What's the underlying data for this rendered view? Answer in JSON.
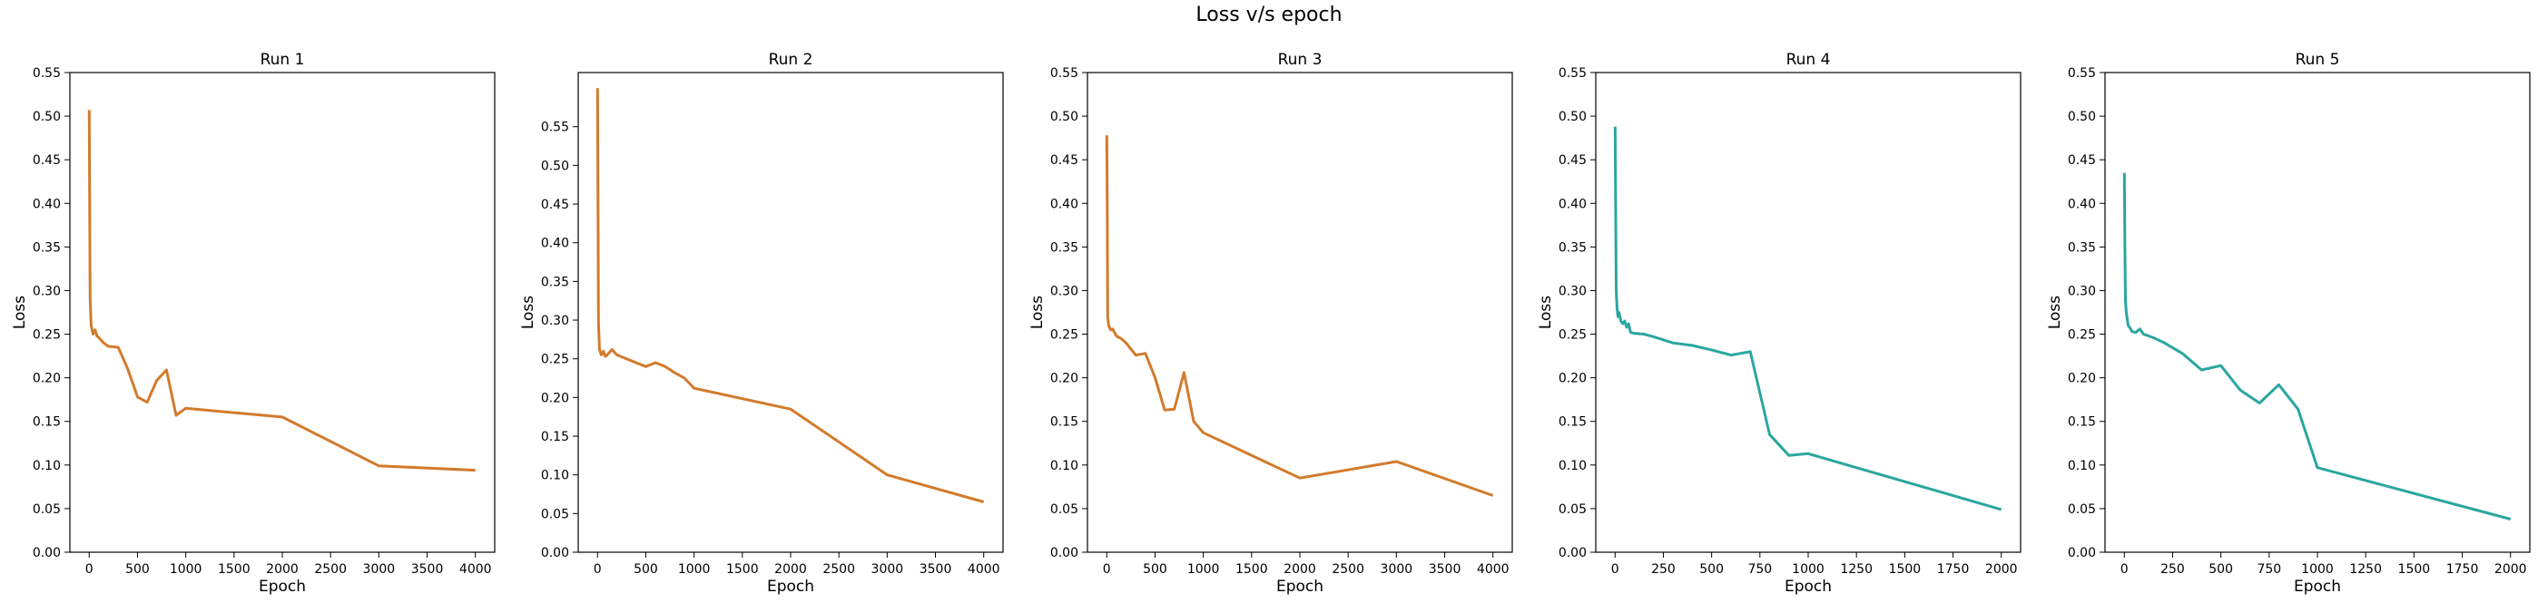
{
  "figure": {
    "suptitle": "Loss v/s epoch"
  },
  "chart_data": [
    {
      "type": "line",
      "title": "Run 1",
      "xlabel": "Epoch",
      "ylabel": "Loss",
      "xlim": [
        -200,
        4200
      ],
      "ylim": [
        0,
        0.55
      ],
      "xticks": [
        0,
        500,
        1000,
        1500,
        2000,
        2500,
        3000,
        3500,
        4000
      ],
      "yticks": [
        0.0,
        0.05,
        0.1,
        0.15,
        0.2,
        0.25,
        0.3,
        0.35,
        0.4,
        0.45,
        0.5,
        0.55
      ],
      "ytick_labels": [
        "0.00",
        "0.05",
        "0.10",
        "0.15",
        "0.20",
        "0.25",
        "0.30",
        "0.35",
        "0.40",
        "0.45",
        "0.50",
        "0.55"
      ],
      "color": "#d27b2c",
      "series": [
        {
          "x": [
            0,
            5,
            10,
            20,
            40,
            60,
            80,
            100,
            150,
            200,
            300,
            400,
            500,
            600,
            700,
            800,
            900,
            1000,
            2000,
            3000,
            4000
          ],
          "y": [
            0.507,
            0.4,
            0.29,
            0.26,
            0.25,
            0.255,
            0.248,
            0.246,
            0.24,
            0.236,
            0.235,
            0.21,
            0.178,
            0.172,
            0.197,
            0.209,
            0.157,
            0.165,
            0.155,
            0.099,
            0.094
          ]
        }
      ]
    },
    {
      "type": "line",
      "title": "Run 2",
      "xlabel": "Epoch",
      "ylabel": "Loss",
      "xlim": [
        -200,
        4200
      ],
      "ylim": [
        0,
        0.62
      ],
      "xticks": [
        0,
        500,
        1000,
        1500,
        2000,
        2500,
        3000,
        3500,
        4000
      ],
      "yticks": [
        0.0,
        0.05,
        0.1,
        0.15,
        0.2,
        0.25,
        0.3,
        0.35,
        0.4,
        0.45,
        0.5,
        0.55
      ],
      "ytick_labels": [
        "0.00",
        "0.05",
        "0.10",
        "0.15",
        "0.20",
        "0.25",
        "0.30",
        "0.35",
        "0.40",
        "0.45",
        "0.50",
        "0.55"
      ],
      "color": "#d27b2c",
      "series": [
        {
          "x": [
            0,
            5,
            10,
            20,
            40,
            60,
            80,
            100,
            150,
            200,
            300,
            400,
            500,
            600,
            700,
            800,
            900,
            1000,
            2000,
            3000,
            4000
          ],
          "y": [
            0.6,
            0.45,
            0.3,
            0.262,
            0.255,
            0.26,
            0.253,
            0.255,
            0.262,
            0.255,
            0.25,
            0.245,
            0.24,
            0.245,
            0.24,
            0.232,
            0.225,
            0.212,
            0.185,
            0.1,
            0.065
          ]
        }
      ]
    },
    {
      "type": "line",
      "title": "Run 3",
      "xlabel": "Epoch",
      "ylabel": "Loss",
      "xlim": [
        -200,
        4200
      ],
      "ylim": [
        0,
        0.55
      ],
      "xticks": [
        0,
        500,
        1000,
        1500,
        2000,
        2500,
        3000,
        3500,
        4000
      ],
      "yticks": [
        0.0,
        0.05,
        0.1,
        0.15,
        0.2,
        0.25,
        0.3,
        0.35,
        0.4,
        0.45,
        0.5,
        0.55
      ],
      "ytick_labels": [
        "0.00",
        "0.05",
        "0.10",
        "0.15",
        "0.20",
        "0.25",
        "0.30",
        "0.35",
        "0.40",
        "0.45",
        "0.50",
        "0.55"
      ],
      "color": "#d27b2c",
      "series": [
        {
          "x": [
            0,
            5,
            10,
            20,
            40,
            60,
            80,
            100,
            150,
            200,
            300,
            400,
            500,
            600,
            700,
            800,
            900,
            1000,
            2000,
            3000,
            4000
          ],
          "y": [
            0.478,
            0.4,
            0.27,
            0.26,
            0.255,
            0.256,
            0.252,
            0.248,
            0.245,
            0.24,
            0.226,
            0.228,
            0.2,
            0.163,
            0.164,
            0.206,
            0.15,
            0.137,
            0.085,
            0.104,
            0.065
          ]
        }
      ]
    },
    {
      "type": "line",
      "title": "Run 4",
      "xlabel": "Epoch",
      "ylabel": "Loss",
      "xlim": [
        -100,
        2100
      ],
      "ylim": [
        0,
        0.55
      ],
      "xticks": [
        0,
        250,
        500,
        750,
        1000,
        1250,
        1500,
        1750,
        2000
      ],
      "yticks": [
        0.0,
        0.05,
        0.1,
        0.15,
        0.2,
        0.25,
        0.3,
        0.35,
        0.4,
        0.45,
        0.5,
        0.55
      ],
      "ytick_labels": [
        "0.00",
        "0.05",
        "0.10",
        "0.15",
        "0.20",
        "0.25",
        "0.30",
        "0.35",
        "0.40",
        "0.45",
        "0.50",
        "0.55"
      ],
      "color": "#2aa6a0",
      "series": [
        {
          "x": [
            0,
            3,
            6,
            10,
            15,
            20,
            30,
            40,
            50,
            60,
            70,
            80,
            100,
            150,
            200,
            300,
            400,
            500,
            600,
            700,
            800,
            900,
            1000,
            2000
          ],
          "y": [
            0.488,
            0.4,
            0.3,
            0.28,
            0.27,
            0.275,
            0.265,
            0.262,
            0.265,
            0.258,
            0.262,
            0.252,
            0.251,
            0.25,
            0.247,
            0.24,
            0.237,
            0.232,
            0.226,
            0.23,
            0.135,
            0.111,
            0.113,
            0.049
          ]
        }
      ]
    },
    {
      "type": "line",
      "title": "Run 5",
      "xlabel": "Epoch",
      "ylabel": "Loss",
      "xlim": [
        -100,
        2100
      ],
      "ylim": [
        0,
        0.55
      ],
      "xticks": [
        0,
        250,
        500,
        750,
        1000,
        1250,
        1500,
        1750,
        2000
      ],
      "yticks": [
        0.0,
        0.05,
        0.1,
        0.15,
        0.2,
        0.25,
        0.3,
        0.35,
        0.4,
        0.45,
        0.5,
        0.55
      ],
      "ytick_labels": [
        "0.00",
        "0.05",
        "0.10",
        "0.15",
        "0.20",
        "0.25",
        "0.30",
        "0.35",
        "0.40",
        "0.45",
        "0.50",
        "0.55"
      ],
      "color": "#2aa6a0",
      "series": [
        {
          "x": [
            0,
            3,
            6,
            10,
            20,
            30,
            40,
            60,
            80,
            100,
            150,
            200,
            300,
            400,
            500,
            600,
            700,
            800,
            900,
            1000,
            2000
          ],
          "y": [
            0.435,
            0.35,
            0.29,
            0.275,
            0.26,
            0.257,
            0.253,
            0.252,
            0.256,
            0.25,
            0.246,
            0.241,
            0.228,
            0.209,
            0.214,
            0.186,
            0.171,
            0.192,
            0.164,
            0.097,
            0.038
          ]
        }
      ]
    }
  ]
}
